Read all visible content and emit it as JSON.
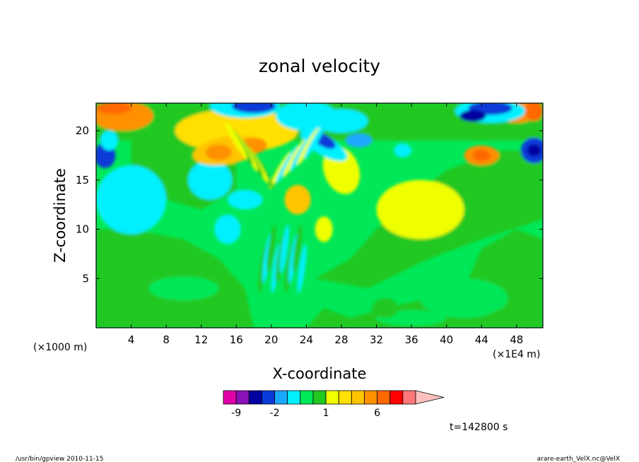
{
  "chart_data": {
    "type": "heatmap",
    "title": "zonal velocity",
    "xlabel": "X-coordinate",
    "ylabel": "Z-coordinate",
    "x_unit_label": "(×1000 m)",
    "x_unit_label_right": "(×1E4 m)",
    "xlim": [
      0,
      51
    ],
    "ylim": [
      0,
      22.8
    ],
    "x_ticks": [
      4,
      8,
      12,
      16,
      20,
      24,
      28,
      32,
      36,
      40,
      44,
      48
    ],
    "y_ticks": [
      5,
      10,
      15,
      20
    ],
    "colorbar": {
      "levels": [
        -12,
        -9,
        -6,
        -3,
        -2,
        -1,
        0,
        0.5,
        1,
        2,
        3,
        4,
        6,
        8,
        10,
        12
      ],
      "colors": [
        "#e000a8",
        "#8a10b8",
        "#0000a0",
        "#0a3ad8",
        "#1aa8ff",
        "#00f0ff",
        "#00e858",
        "#20c820",
        "#f0ff00",
        "#ffe000",
        "#ffc400",
        "#ff9000",
        "#ff6800",
        "#ff0000",
        "#ff7878",
        "#ffc0c0"
      ],
      "tick_labels": [
        "-9",
        "-2",
        "1",
        "6"
      ],
      "tick_levels": [
        -9,
        -2,
        1,
        6
      ],
      "extend": "max"
    },
    "time_label": "t=142800 s"
  },
  "footer": {
    "left": "/usr/bin/gpview   2010-11-15",
    "right": "arare-earth_VelX.nc@VelX"
  }
}
